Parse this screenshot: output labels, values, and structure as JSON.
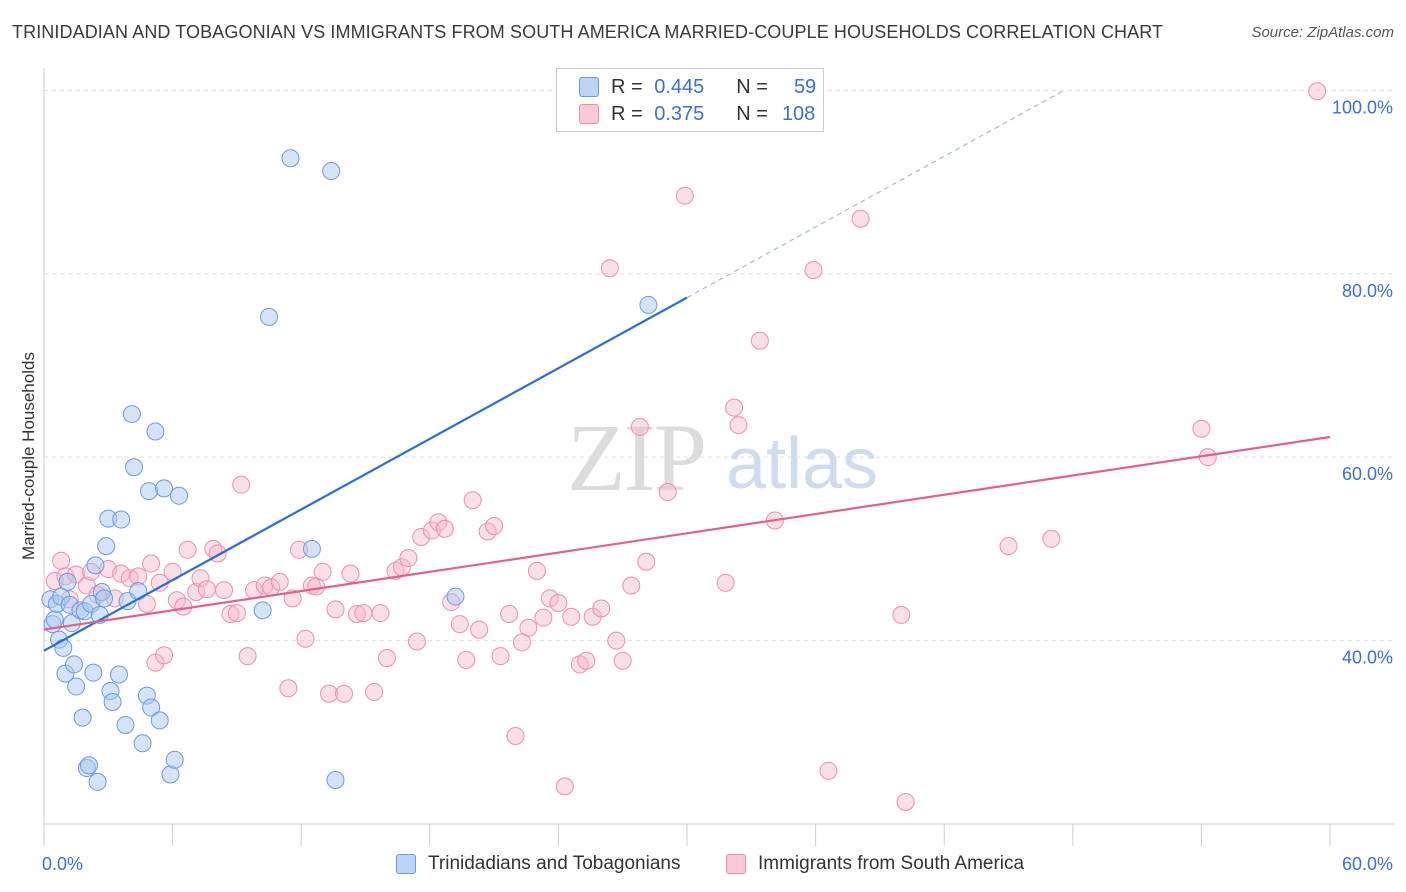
{
  "header": {
    "title": "TRINIDADIAN AND TOBAGONIAN VS IMMIGRANTS FROM SOUTH AMERICA MARRIED-COUPLE HOUSEHOLDS CORRELATION CHART",
    "source": "Source: ZipAtlas.com"
  },
  "legend": {
    "r_label": "R =",
    "n_label": "N =",
    "series1": {
      "r": "0.445",
      "n": "59"
    },
    "series2": {
      "r": "0.375",
      "n": "108"
    }
  },
  "watermark": {
    "zip": "ZIP",
    "atlas": "atlas"
  },
  "colors": {
    "blue_fill": "#a9c8f0",
    "blue_stroke": "#6a9be0",
    "blue_line": "#2a6fcf",
    "pink_fill": "#f7b9cc",
    "pink_stroke": "#ec8fab",
    "pink_line": "#e0618a",
    "axis_label": "#3b6fd4"
  },
  "chart_data": {
    "type": "scatter",
    "title": "TRINIDADIAN AND TOBAGONIAN VS IMMIGRANTS FROM SOUTH AMERICA MARRIED-COUPLE HOUSEHOLDS CORRELATION CHART",
    "xlabel": "",
    "ylabel": "Married-couple Households",
    "xlim": [
      0,
      60
    ],
    "ylim": [
      20,
      102
    ],
    "x_tick_labels": [
      "0.0%",
      "60.0%"
    ],
    "y_ticks": [
      40,
      60,
      80,
      100
    ],
    "y_tick_labels": [
      "40.0%",
      "60.0%",
      "80.0%",
      "100.0%"
    ],
    "grid": true,
    "series": [
      {
        "name": "Trinidadians and Tobagonians",
        "r": 0.445,
        "n": 59,
        "trend": {
          "x": [
            0,
            30
          ],
          "y": [
            38.9,
            77.4
          ],
          "dashed_to": [
            47.6,
            100
          ]
        },
        "points": [
          [
            0.3,
            44.5
          ],
          [
            0.4,
            41.8
          ],
          [
            0.5,
            42.3
          ],
          [
            0.6,
            44.0
          ],
          [
            0.7,
            40.1
          ],
          [
            0.8,
            44.8
          ],
          [
            0.9,
            39.2
          ],
          [
            1.0,
            36.4
          ],
          [
            1.1,
            46.4
          ],
          [
            1.2,
            43.9
          ],
          [
            1.3,
            41.9
          ],
          [
            1.4,
            37.4
          ],
          [
            1.5,
            35.0
          ],
          [
            1.7,
            43.3
          ],
          [
            1.8,
            31.6
          ],
          [
            1.9,
            43.2
          ],
          [
            2.0,
            26.1
          ],
          [
            2.1,
            26.4
          ],
          [
            2.2,
            44.0
          ],
          [
            2.3,
            36.5
          ],
          [
            2.4,
            48.2
          ],
          [
            2.5,
            24.6
          ],
          [
            2.6,
            42.8
          ],
          [
            2.7,
            45.3
          ],
          [
            2.8,
            44.6
          ],
          [
            2.9,
            50.3
          ],
          [
            3.0,
            53.3
          ],
          [
            3.1,
            34.5
          ],
          [
            3.2,
            33.3
          ],
          [
            3.5,
            36.3
          ],
          [
            3.6,
            53.2
          ],
          [
            3.8,
            30.8
          ],
          [
            3.9,
            44.3
          ],
          [
            4.1,
            64.7
          ],
          [
            4.2,
            58.9
          ],
          [
            4.4,
            45.4
          ],
          [
            4.6,
            28.8
          ],
          [
            4.8,
            34.0
          ],
          [
            4.9,
            56.3
          ],
          [
            5.0,
            32.7
          ],
          [
            5.2,
            62.8
          ],
          [
            5.4,
            31.3
          ],
          [
            5.6,
            56.6
          ],
          [
            5.9,
            25.4
          ],
          [
            6.1,
            27.0
          ],
          [
            6.3,
            55.8
          ],
          [
            10.2,
            43.3
          ],
          [
            10.5,
            75.3
          ],
          [
            11.5,
            92.6
          ],
          [
            12.5,
            50.0
          ],
          [
            13.4,
            91.2
          ],
          [
            13.6,
            24.8
          ],
          [
            19.2,
            44.8
          ],
          [
            28.2,
            76.6
          ]
        ]
      },
      {
        "name": "Immigrants from South America",
        "r": 0.375,
        "n": 108,
        "trend": {
          "x": [
            0,
            60
          ],
          "y": [
            41.2,
            62.2
          ]
        },
        "points": [
          [
            0.5,
            46.5
          ],
          [
            0.8,
            48.7
          ],
          [
            1.0,
            47.0
          ],
          [
            1.2,
            44.5
          ],
          [
            1.5,
            47.2
          ],
          [
            2.0,
            46.0
          ],
          [
            2.2,
            47.5
          ],
          [
            2.5,
            45.0
          ],
          [
            3.0,
            47.8
          ],
          [
            3.3,
            44.6
          ],
          [
            3.6,
            47.3
          ],
          [
            4.0,
            46.8
          ],
          [
            4.4,
            47.0
          ],
          [
            4.8,
            44.0
          ],
          [
            5.0,
            48.4
          ],
          [
            5.2,
            37.6
          ],
          [
            5.4,
            46.3
          ],
          [
            5.6,
            38.4
          ],
          [
            6.0,
            47.5
          ],
          [
            6.2,
            44.4
          ],
          [
            6.5,
            43.7
          ],
          [
            6.7,
            49.9
          ],
          [
            7.1,
            45.3
          ],
          [
            7.3,
            46.8
          ],
          [
            7.6,
            45.6
          ],
          [
            7.9,
            50.0
          ],
          [
            8.1,
            49.5
          ],
          [
            8.4,
            45.5
          ],
          [
            8.7,
            42.9
          ],
          [
            9.0,
            43.0
          ],
          [
            9.2,
            57.0
          ],
          [
            9.5,
            38.3
          ],
          [
            9.8,
            45.5
          ],
          [
            10.3,
            46.0
          ],
          [
            10.6,
            45.8
          ],
          [
            11.0,
            46.4
          ],
          [
            11.4,
            34.8
          ],
          [
            11.6,
            44.6
          ],
          [
            11.9,
            49.9
          ],
          [
            12.2,
            40.2
          ],
          [
            12.5,
            46.0
          ],
          [
            12.7,
            45.9
          ],
          [
            13.0,
            47.5
          ],
          [
            13.3,
            34.2
          ],
          [
            13.6,
            43.4
          ],
          [
            14.0,
            34.2
          ],
          [
            14.3,
            47.3
          ],
          [
            14.6,
            42.9
          ],
          [
            14.9,
            43.0
          ],
          [
            15.4,
            34.4
          ],
          [
            15.7,
            43.0
          ],
          [
            16.0,
            38.1
          ],
          [
            16.4,
            47.6
          ],
          [
            16.7,
            48.0
          ],
          [
            17.0,
            49.0
          ],
          [
            17.4,
            39.9
          ],
          [
            17.6,
            51.3
          ],
          [
            18.1,
            52.0
          ],
          [
            18.4,
            52.9
          ],
          [
            18.7,
            52.2
          ],
          [
            19.0,
            44.2
          ],
          [
            19.4,
            41.8
          ],
          [
            19.7,
            37.9
          ],
          [
            20.0,
            55.3
          ],
          [
            20.3,
            41.2
          ],
          [
            20.7,
            51.9
          ],
          [
            21.0,
            52.5
          ],
          [
            21.3,
            38.3
          ],
          [
            21.7,
            42.9
          ],
          [
            22.0,
            29.6
          ],
          [
            22.3,
            39.8
          ],
          [
            22.6,
            41.4
          ],
          [
            23.0,
            47.6
          ],
          [
            23.3,
            42.5
          ],
          [
            23.6,
            44.6
          ],
          [
            24.0,
            44.1
          ],
          [
            24.3,
            24.1
          ],
          [
            24.6,
            42.6
          ],
          [
            25.0,
            37.4
          ],
          [
            25.3,
            37.8
          ],
          [
            25.6,
            42.6
          ],
          [
            26.0,
            43.5
          ],
          [
            26.4,
            80.6
          ],
          [
            26.7,
            40.0
          ],
          [
            27.0,
            37.8
          ],
          [
            27.4,
            46.0
          ],
          [
            27.8,
            63.3
          ],
          [
            28.1,
            48.6
          ],
          [
            29.1,
            56.2
          ],
          [
            29.9,
            88.5
          ],
          [
            31.8,
            46.3
          ],
          [
            32.2,
            65.4
          ],
          [
            32.4,
            63.5
          ],
          [
            33.4,
            72.7
          ],
          [
            34.1,
            53.1
          ],
          [
            35.9,
            80.4
          ],
          [
            36.6,
            25.8
          ],
          [
            38.1,
            86.0
          ],
          [
            40.0,
            42.8
          ],
          [
            40.2,
            22.4
          ],
          [
            45.0,
            50.3
          ],
          [
            47.0,
            51.1
          ],
          [
            54.0,
            63.1
          ],
          [
            54.3,
            60.0
          ],
          [
            59.4,
            99.9
          ]
        ]
      }
    ]
  },
  "bottom_legend": {
    "series1_label": "Trinidadians and Tobagonians",
    "series2_label": "Immigrants from South America"
  }
}
